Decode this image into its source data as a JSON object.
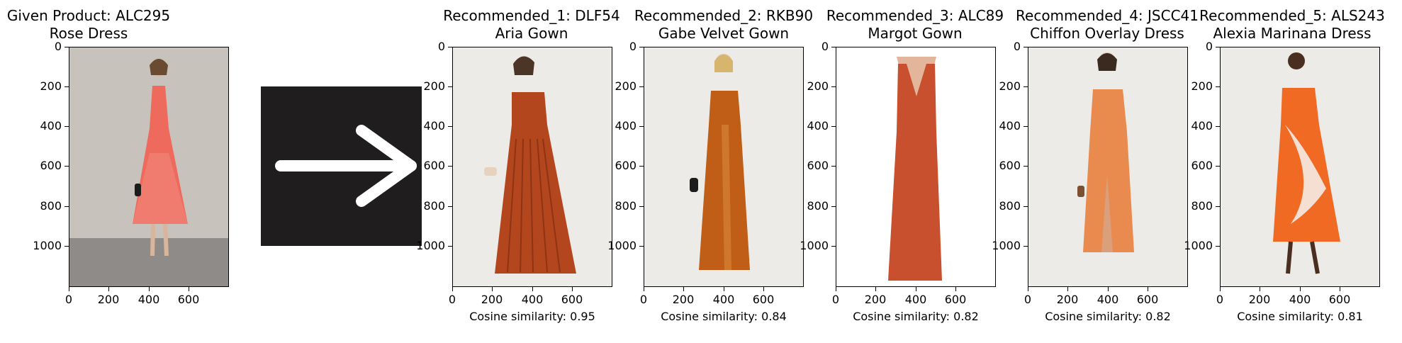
{
  "colors": {
    "background": "#ffffff",
    "arrow_box": "#1f1d1e",
    "arrow": "#ffffff",
    "given_dress": "#ee6a5c",
    "given_bg": "#c8c2bc",
    "rec_bg": "#ecebe8",
    "rec3_bg": "#ffffff",
    "rec1_dress": "#b4461e",
    "rec2_dress": "#c05d16",
    "rec3_dress": "#c8502e",
    "rec4_dress": "#e98a4f",
    "rec5_dress": "#f06a23"
  },
  "icons": [
    "right-arrow-icon"
  ],
  "chart_data": [
    {
      "type": "image",
      "title": "Given Product: ALC295\nRose Dress",
      "title_line1": "Given Product: ALC295",
      "title_line2": "Rose Dress",
      "xticks": [
        "0",
        "200",
        "400",
        "600"
      ],
      "yticks": [
        "0",
        "200",
        "400",
        "600",
        "800",
        "1000"
      ],
      "xlim": [
        0,
        800
      ],
      "ylim": [
        1200,
        0
      ],
      "caption": ""
    },
    {
      "type": "image",
      "title": "Recommended_1: DLF54\nAria Gown",
      "title_line1": "Recommended_1: DLF54",
      "title_line2": "Aria Gown",
      "xticks": [
        "0",
        "200",
        "400",
        "600"
      ],
      "yticks": [
        "0",
        "200",
        "400",
        "600",
        "800",
        "1000"
      ],
      "xlim": [
        0,
        800
      ],
      "ylim": [
        1200,
        0
      ],
      "caption": "Cosine similarity: 0.95",
      "cosine_similarity": 0.95
    },
    {
      "type": "image",
      "title": "Recommended_2: RKB90\nGabe Velvet Gown",
      "title_line1": "Recommended_2: RKB90",
      "title_line2": "Gabe Velvet Gown",
      "xticks": [
        "0",
        "200",
        "400",
        "600"
      ],
      "yticks": [
        "0",
        "200",
        "400",
        "600",
        "800",
        "1000"
      ],
      "xlim": [
        0,
        800
      ],
      "ylim": [
        1200,
        0
      ],
      "caption": "Cosine similarity: 0.84",
      "cosine_similarity": 0.84
    },
    {
      "type": "image",
      "title": "Recommended_3: ALC89\nMargot Gown",
      "title_line1": "Recommended_3: ALC89",
      "title_line2": "Margot Gown",
      "xticks": [
        "0",
        "200",
        "400",
        "600"
      ],
      "yticks": [
        "0",
        "200",
        "400",
        "600",
        "800",
        "1000"
      ],
      "xlim": [
        0,
        800
      ],
      "ylim": [
        1200,
        0
      ],
      "caption": "Cosine similarity: 0.82",
      "cosine_similarity": 0.82
    },
    {
      "type": "image",
      "title": "Recommended_4: JSCC41\nChiffon Overlay Dress",
      "title_line1": "Recommended_4: JSCC41",
      "title_line2": "Chiffon Overlay Dress",
      "xticks": [
        "0",
        "200",
        "400",
        "600"
      ],
      "yticks": [
        "0",
        "200",
        "400",
        "600",
        "800",
        "1000"
      ],
      "xlim": [
        0,
        800
      ],
      "ylim": [
        1200,
        0
      ],
      "caption": "Cosine similarity: 0.82",
      "cosine_similarity": 0.82
    },
    {
      "type": "image",
      "title": "Recommended_5: ALS243\nAlexia Marinana Dress",
      "title_line1": "Recommended_5: ALS243",
      "title_line2": "Alexia Marinana Dress",
      "xticks": [
        "0",
        "200",
        "400",
        "600"
      ],
      "yticks": [
        "0",
        "200",
        "400",
        "600",
        "800",
        "1000"
      ],
      "xlim": [
        0,
        800
      ],
      "ylim": [
        1200,
        0
      ],
      "caption": "Cosine similarity: 0.81",
      "cosine_similarity": 0.81
    }
  ]
}
